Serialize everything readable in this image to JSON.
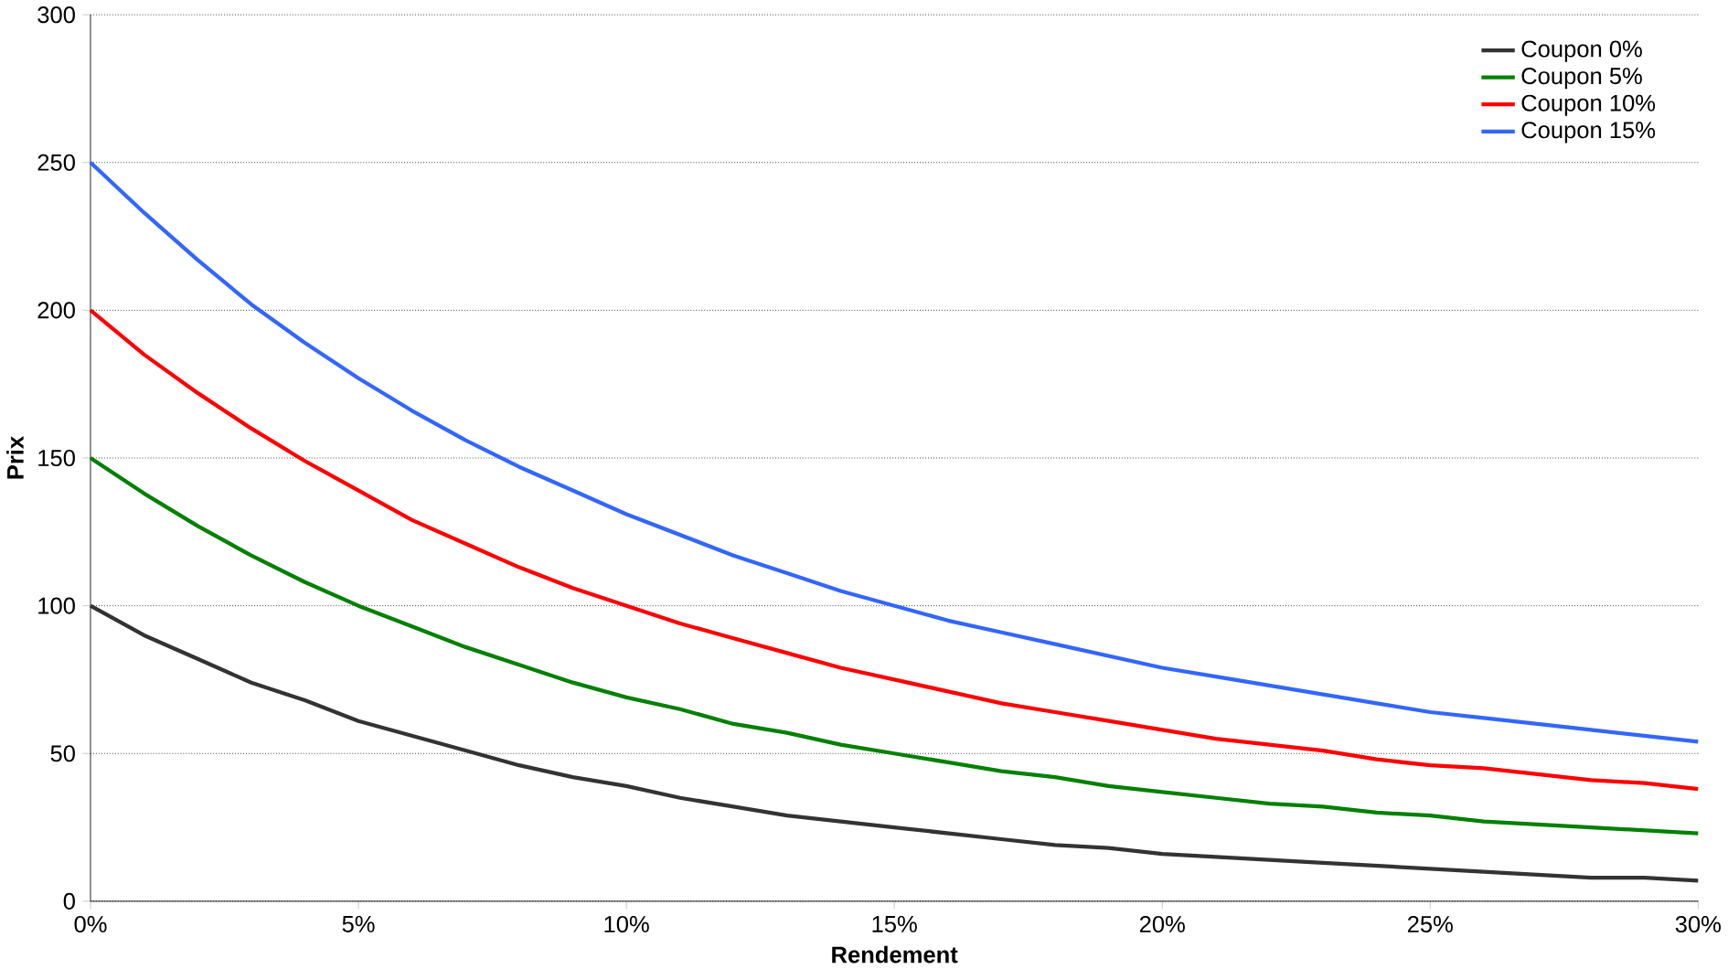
{
  "chart_data": {
    "type": "line",
    "xlabel": "Rendement",
    "ylabel": "Prix",
    "x": [
      0,
      1,
      2,
      3,
      4,
      5,
      6,
      7,
      8,
      9,
      10,
      11,
      12,
      13,
      14,
      15,
      16,
      17,
      18,
      19,
      20,
      21,
      22,
      23,
      24,
      25,
      26,
      27,
      28,
      29,
      30
    ],
    "series": [
      {
        "name": "Coupon 0%",
        "color": "#333333",
        "values": [
          100,
          90,
          82,
          74,
          68,
          61,
          56,
          51,
          46,
          42,
          39,
          35,
          32,
          29,
          27,
          25,
          23,
          21,
          19,
          18,
          16,
          15,
          14,
          13,
          12,
          11,
          10,
          9,
          8,
          8,
          7
        ]
      },
      {
        "name": "Coupon 5%",
        "color": "#008000",
        "values": [
          150,
          138,
          127,
          117,
          108,
          100,
          93,
          86,
          80,
          74,
          69,
          65,
          60,
          57,
          53,
          50,
          47,
          44,
          42,
          39,
          37,
          35,
          33,
          32,
          30,
          29,
          27,
          26,
          25,
          24,
          23
        ]
      },
      {
        "name": "Coupon 10%",
        "color": "#ff0000",
        "values": [
          200,
          185,
          172,
          160,
          149,
          139,
          129,
          121,
          113,
          106,
          100,
          94,
          89,
          84,
          79,
          75,
          71,
          67,
          64,
          61,
          58,
          55,
          53,
          51,
          48,
          46,
          45,
          43,
          41,
          40,
          38
        ]
      },
      {
        "name": "Coupon 15%",
        "color": "#3366ff",
        "values": [
          250,
          233,
          217,
          202,
          189,
          177,
          166,
          156,
          147,
          139,
          131,
          124,
          117,
          111,
          105,
          100,
          95,
          91,
          87,
          83,
          79,
          76,
          73,
          70,
          67,
          64,
          62,
          60,
          58,
          56,
          54
        ]
      }
    ],
    "xlim": [
      0,
      30
    ],
    "xticks": [
      {
        "value": 0,
        "label": "0%"
      },
      {
        "value": 5,
        "label": "5%"
      },
      {
        "value": 10,
        "label": "10%"
      },
      {
        "value": 15,
        "label": "15%"
      },
      {
        "value": 20,
        "label": "20%"
      },
      {
        "value": 25,
        "label": "25%"
      },
      {
        "value": 30,
        "label": "30%"
      }
    ],
    "ylim": [
      0,
      300
    ],
    "yticks": [
      0,
      50,
      100,
      150,
      200,
      250,
      300
    ],
    "grid": "y",
    "legend": "top right",
    "marker": "none",
    "line_style": "solid"
  }
}
